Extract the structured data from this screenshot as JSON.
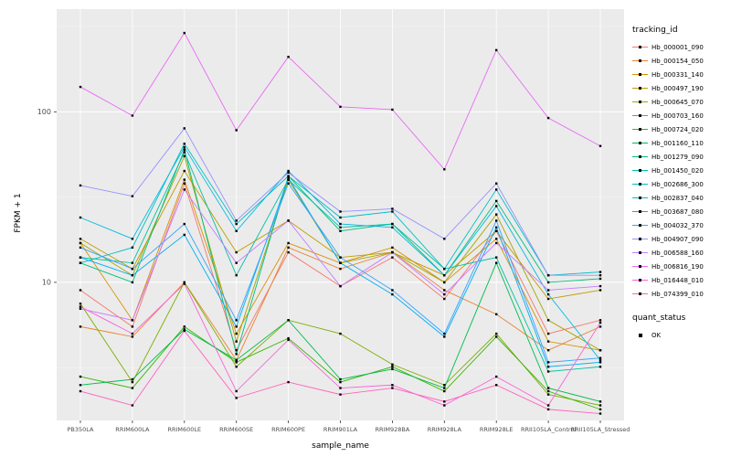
{
  "chart_data": {
    "type": "line",
    "title": "",
    "xlabel": "sample_name",
    "ylabel": "FPKM + 1",
    "y_scale": "log10",
    "y_tick_labels": [
      "100",
      "10"
    ],
    "y_major_breaks": [
      100,
      10
    ],
    "y_minor_breaks": [
      3.162,
      31.62,
      316.2
    ],
    "ylim": [
      1.55,
      400
    ],
    "panel_color": "#EBEBEB",
    "grid_color": "#FFFFFF",
    "categories": [
      "PB350LA",
      "RRIM600LA",
      "RRIM600LE",
      "RRIM600SE",
      "RRIM600PE",
      "RRIM901LA",
      "RRIM928BA",
      "RRIM928LA",
      "RRIM928LE",
      "RRII105LA_Control",
      "RRII105LA_Stressed"
    ],
    "series": [
      {
        "name": "Hb_000001_090",
        "color": "#F8766D",
        "values": [
          9,
          5.5,
          38,
          4,
          15,
          9.5,
          14,
          8,
          20,
          5,
          6
        ]
      },
      {
        "name": "Hb_000154_050",
        "color": "#EA8331",
        "values": [
          5.5,
          4.8,
          10,
          3.5,
          16,
          12,
          15,
          9,
          6.5,
          4,
          5.5
        ]
      },
      {
        "name": "Hb_000331_140",
        "color": "#D89000",
        "values": [
          17,
          6,
          40,
          5,
          17,
          13,
          16,
          10,
          18,
          4.5,
          4
        ]
      },
      {
        "name": "Hb_000497_190",
        "color": "#C09B00",
        "values": [
          18,
          12,
          45,
          15,
          23,
          14,
          15,
          11,
          20,
          8,
          9
        ]
      },
      {
        "name": "Hb_000645_070",
        "color": "#A3A500",
        "values": [
          17,
          11,
          55,
          4.5,
          40,
          13,
          15,
          10,
          25,
          6,
          4
        ]
      },
      {
        "name": "Hb_000703_160",
        "color": "#7CAE00",
        "values": [
          7.5,
          2.6,
          10,
          3.2,
          6,
          5,
          3.3,
          2.5,
          5,
          2.2,
          1.9
        ]
      },
      {
        "name": "Hb_000724_020",
        "color": "#39B600",
        "values": [
          2.8,
          2.4,
          5.5,
          3.4,
          4.7,
          2.6,
          3.2,
          2.3,
          4.8,
          2.3,
          1.8
        ]
      },
      {
        "name": "Hb_001160_110",
        "color": "#00BB4E",
        "values": [
          2.5,
          2.7,
          5.3,
          3.5,
          6,
          2.7,
          3.1,
          2.4,
          13,
          2.4,
          2.0
        ]
      },
      {
        "name": "Hb_001279_090",
        "color": "#00BF7D",
        "values": [
          13,
          10,
          60,
          3.8,
          42,
          20,
          22,
          11,
          30,
          10,
          10.5
        ]
      },
      {
        "name": "Hb_001450_020",
        "color": "#00C1A3",
        "values": [
          14,
          13,
          58,
          11,
          40,
          21,
          22,
          12,
          14,
          3,
          3.2
        ]
      },
      {
        "name": "Hb_002686_300",
        "color": "#00BFC4",
        "values": [
          13,
          16,
          65,
          22,
          42,
          24,
          26,
          12,
          35,
          11,
          11.5
        ]
      },
      {
        "name": "Hb_002837_040",
        "color": "#00BAE0",
        "values": [
          24,
          18,
          62,
          20,
          45,
          22,
          21,
          11,
          28,
          8.5,
          3.5
        ]
      },
      {
        "name": "Hb_003687_080",
        "color": "#00B0F6",
        "values": [
          14,
          11,
          19,
          5.5,
          41,
          13,
          8.5,
          4.8,
          21,
          3.2,
          3.4
        ]
      },
      {
        "name": "Hb_004032_370",
        "color": "#35A2FF",
        "values": [
          16,
          12,
          22,
          6,
          38,
          14,
          9,
          5,
          23,
          3.4,
          3.6
        ]
      },
      {
        "name": "Hb_004907_090",
        "color": "#9590FF",
        "values": [
          37,
          32,
          80,
          23,
          44,
          26,
          27,
          18,
          38,
          11,
          11
        ]
      },
      {
        "name": "Hb_006588_160",
        "color": "#C77CFF",
        "values": [
          7,
          6,
          35,
          13,
          23,
          9.5,
          15,
          8.5,
          17,
          9,
          9.5
        ]
      },
      {
        "name": "Hb_006816_190",
        "color": "#E76BF3",
        "values": [
          140,
          95,
          290,
          78,
          210,
          107,
          103,
          46,
          230,
          92,
          63
        ]
      },
      {
        "name": "Hb_016448_010",
        "color": "#FA62DB",
        "values": [
          7.2,
          5,
          9.8,
          2.3,
          4.6,
          2.4,
          2.5,
          1.9,
          2.8,
          1.9,
          5.8
        ]
      },
      {
        "name": "Hb_074399_010",
        "color": "#FF62BC",
        "values": [
          2.3,
          1.9,
          5.2,
          2.1,
          2.6,
          2.2,
          2.4,
          2.0,
          2.5,
          1.8,
          1.7
        ]
      }
    ],
    "legend": {
      "title": "tracking_id",
      "position": "right",
      "quant_title": "quant_status",
      "quant_label": "OK",
      "point_color": "#000000"
    },
    "grid": true
  }
}
